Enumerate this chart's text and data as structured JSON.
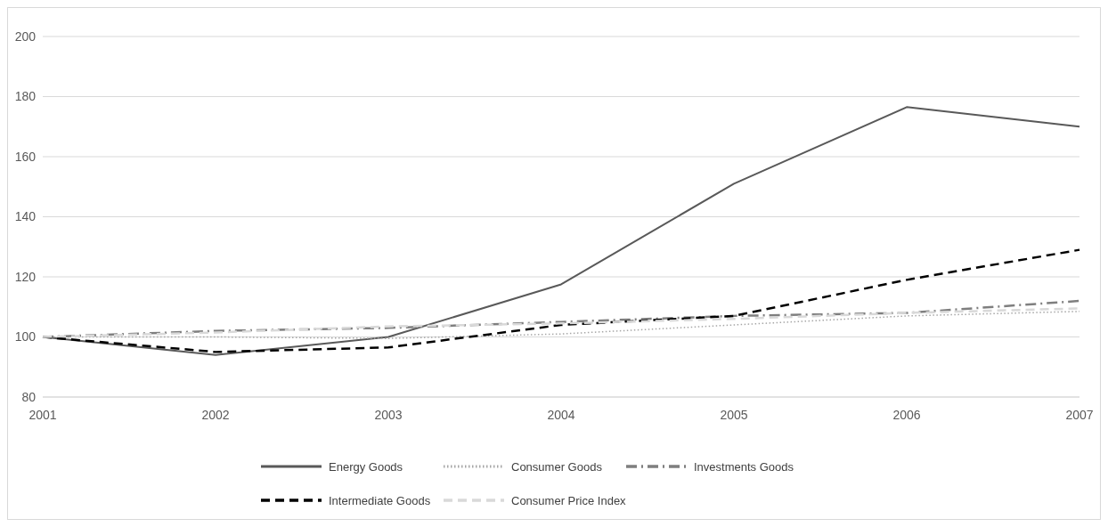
{
  "chart_data": {
    "type": "line",
    "categories": [
      "2001",
      "2002",
      "2003",
      "2004",
      "2005",
      "2006",
      "2007"
    ],
    "series": [
      {
        "name": "Energy Goods",
        "color": "#595959",
        "line_style": "solid",
        "values": [
          100,
          94,
          100,
          117.5,
          151,
          176.5,
          170
        ]
      },
      {
        "name": "Consumer Goods",
        "color": "#a6a6a6",
        "line_style": "dotted",
        "values": [
          100,
          100,
          99.5,
          101,
          104,
          107,
          108.5
        ]
      },
      {
        "name": "Investments Goods",
        "color": "#7f7f7f",
        "line_style": "dashdot",
        "values": [
          100,
          102,
          103,
          105,
          107,
          108,
          112
        ]
      },
      {
        "name": "Intermediate Goods",
        "color": "#000000",
        "line_style": "dashed",
        "values": [
          100,
          95,
          96.5,
          104,
          107,
          119,
          129
        ]
      },
      {
        "name": "Consumer Price Index",
        "color": "#d9d9d9",
        "line_style": "dashed",
        "values": [
          100,
          101.5,
          103.5,
          104.5,
          106,
          108,
          109.5
        ]
      }
    ],
    "ylim": [
      80,
      200
    ],
    "yticks": [
      80,
      100,
      120,
      140,
      160,
      180,
      200
    ],
    "grid": "y",
    "legend": "bottom",
    "marker": "none"
  }
}
